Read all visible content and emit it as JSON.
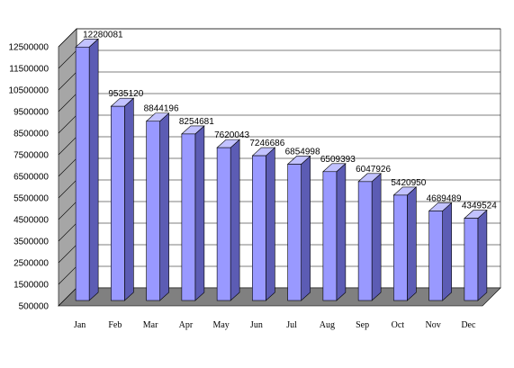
{
  "chart_data": {
    "type": "bar",
    "title": "",
    "xlabel": "",
    "ylabel": "",
    "categories": [
      "Jan",
      "Feb",
      "Mar",
      "Apr",
      "May",
      "Jun",
      "Jul",
      "Aug",
      "Sep",
      "Oct",
      "Nov",
      "Dec"
    ],
    "values": [
      12280081,
      9535120,
      8844196,
      8254681,
      7620043,
      7246686,
      6854998,
      6509393,
      6047926,
      5420950,
      4689489,
      4349524
    ],
    "data_labels": [
      "12280081",
      "9535120",
      "8844196",
      "8254681",
      "7620043",
      "7246686",
      "6854998",
      "6509393",
      "6047926",
      "5420950",
      "4689489",
      "4349524"
    ],
    "ylim": [
      500000,
      12500000
    ],
    "yticks": [
      500000,
      1500000,
      2500000,
      3500000,
      4500000,
      5500000,
      6500000,
      7500000,
      8500000,
      9500000,
      10500000,
      11500000,
      12500000
    ],
    "ytick_labels": [
      "500000",
      "1500000",
      "2500000",
      "3500000",
      "4500000",
      "5500000",
      "6500000",
      "7500000",
      "8500000",
      "9500000",
      "10500000",
      "11500000",
      "12500000"
    ],
    "grid": true,
    "legend": "none",
    "colors": {
      "bar_front": "#9999ff",
      "bar_side": "#5c5cb4",
      "bar_top": "#c2c2ff",
      "wall_back": "#ffffff",
      "wall_side": "#a6a6a6",
      "floor": "#808080",
      "gridline": "#000000"
    }
  }
}
